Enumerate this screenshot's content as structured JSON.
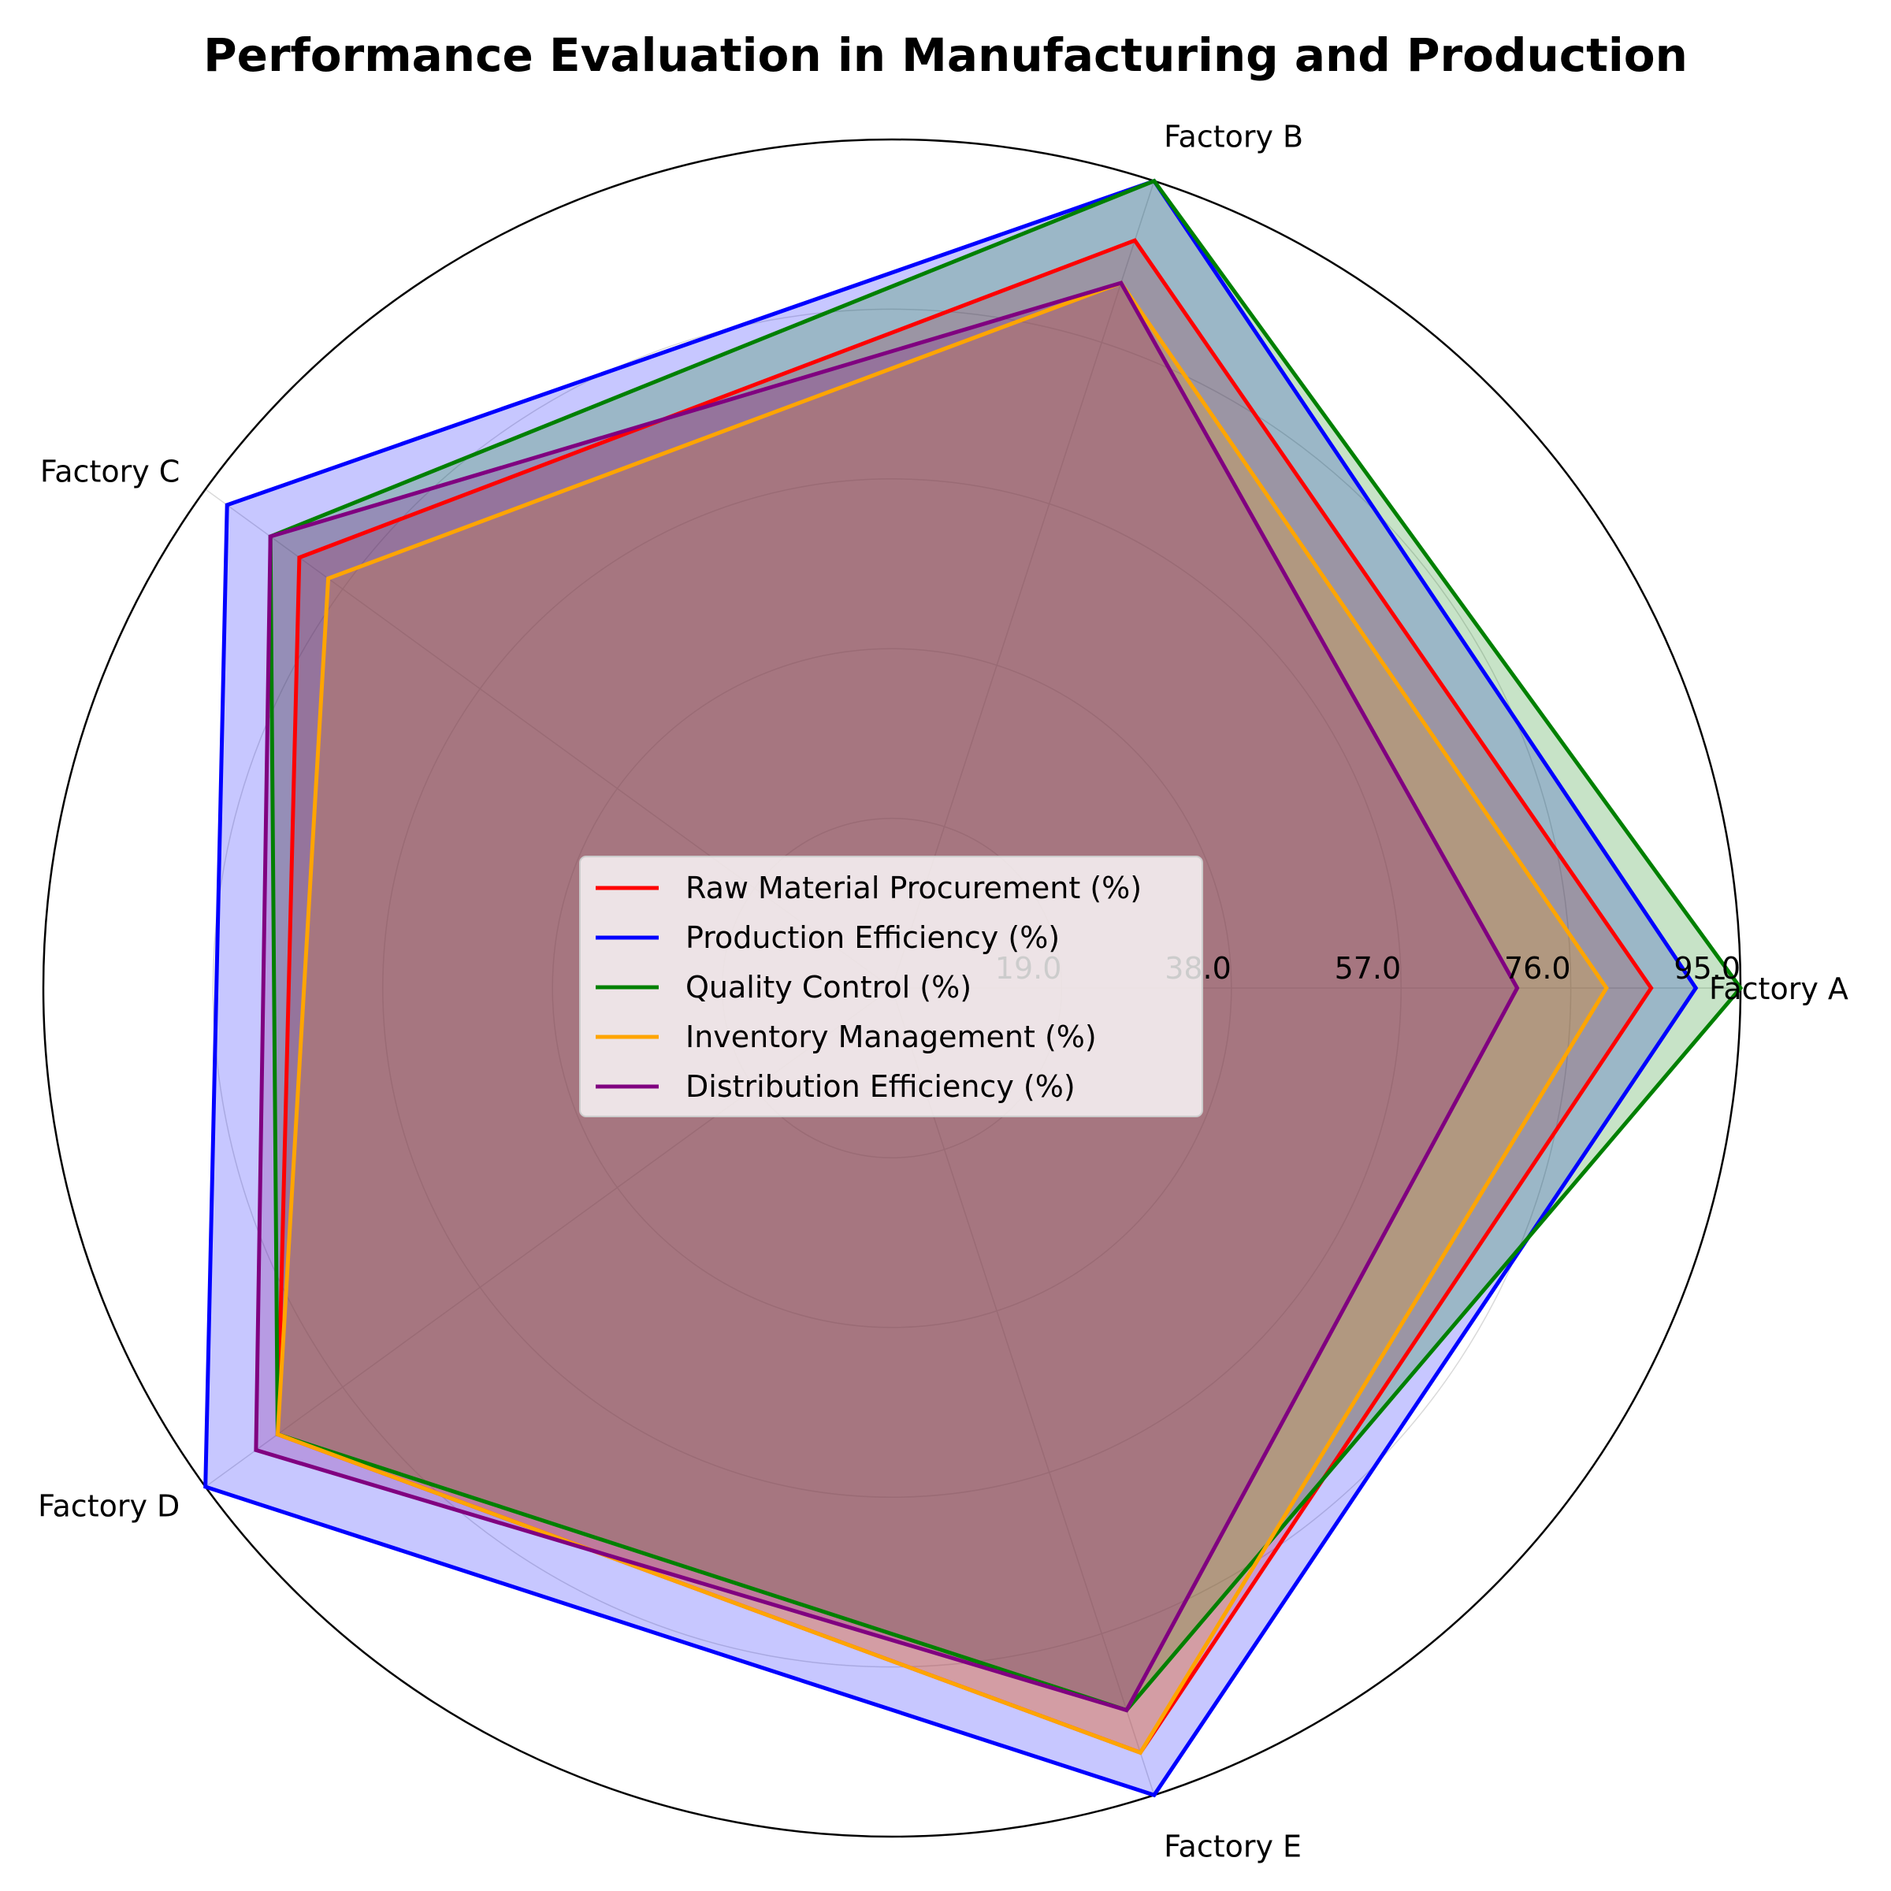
{
  "chart_data": {
    "type": "radar",
    "title": "Performance Evaluation in Manufacturing and Production",
    "categories": [
      "Factory A",
      "Factory B",
      "Factory C",
      "Factory D",
      "Factory E"
    ],
    "rlim": [
      0,
      95
    ],
    "rticks": [
      19,
      38,
      57,
      76,
      95
    ],
    "rtick_labels": [
      "19.0",
      "38.0",
      "57.0",
      "76.0",
      "95.0"
    ],
    "grid": true,
    "legend_position": "center",
    "series": [
      {
        "name": "Raw Material Procurement (%)",
        "color": "#ff0000",
        "values": [
          85,
          88,
          82,
          85,
          90
        ]
      },
      {
        "name": "Production Efficiency (%)",
        "color": "#0000ff",
        "values": [
          90,
          95,
          92,
          95,
          95
        ]
      },
      {
        "name": "Quality Control (%)",
        "color": "#008000",
        "values": [
          95,
          95,
          86,
          85,
          85
        ]
      },
      {
        "name": "Inventory Management (%)",
        "color": "#ffa500",
        "values": [
          80,
          83,
          78,
          85,
          90
        ]
      },
      {
        "name": "Distribution Efficiency (%)",
        "color": "#800080",
        "values": [
          70,
          83,
          86,
          88,
          85
        ]
      }
    ]
  }
}
